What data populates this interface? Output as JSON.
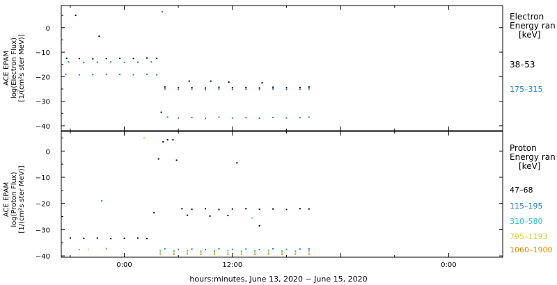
{
  "chart_data": [
    {
      "type": "scatter",
      "panel": "electron",
      "ylabel_lines": [
        "ACE EPAM",
        "log(Electron Flux)",
        "[1/(cm²s ster MeV)]"
      ],
      "legend_title": [
        "Electron",
        "Energy ran",
        "[keV]"
      ],
      "ylim": [
        -42,
        9
      ],
      "yticks": [
        0,
        -10,
        -20,
        -30,
        -40
      ],
      "ytick_labels": [
        "0",
        "−10",
        "−20",
        "−30",
        "−40"
      ],
      "xlim": [
        -7,
        42
      ],
      "series": [
        {
          "name": "38–53",
          "color": "#000000",
          "points": [
            [
              -5.4,
              5
            ],
            [
              -2.8,
              -3.5
            ],
            [
              -6.4,
              -12.5
            ],
            [
              -5,
              -12.6
            ],
            [
              -3.5,
              -12.7
            ],
            [
              -2,
              -12.6
            ],
            [
              -0.5,
              -12.5
            ],
            [
              1,
              -12.6
            ],
            [
              2.5,
              -12.4
            ],
            [
              3.6,
              -12.5
            ],
            [
              4.1,
              -34.5
            ],
            [
              4.5,
              -24.2
            ],
            [
              6,
              -24.5
            ],
            [
              7.5,
              -24.4
            ],
            [
              9,
              -24.6
            ],
            [
              10.5,
              -24.3
            ],
            [
              12,
              -24.5
            ],
            [
              13.5,
              -24.4
            ],
            [
              15,
              -24.6
            ],
            [
              16.5,
              -24.3
            ],
            [
              18,
              -24.5
            ],
            [
              19.5,
              -24.4
            ],
            [
              20.5,
              -24.2
            ],
            [
              7.2,
              -21.8
            ],
            [
              9.6,
              -21.8
            ],
            [
              11.6,
              -22.2
            ],
            [
              15.3,
              -22.5
            ]
          ]
        },
        {
          "name": "175–315",
          "color": "#1f7fd0",
          "points": [
            [
              4.2,
              6.5
            ],
            [
              -6.5,
              -19
            ],
            [
              -5,
              -19.2
            ],
            [
              -3.5,
              -19.1
            ],
            [
              -2,
              -19
            ],
            [
              -0.5,
              -19.1
            ],
            [
              1,
              -19.2
            ],
            [
              2.5,
              -19
            ],
            [
              3.6,
              -19.2
            ],
            [
              -6.2,
              -14
            ],
            [
              -4.5,
              -14.2
            ],
            [
              -3,
              -14.1
            ],
            [
              -1.5,
              -14
            ],
            [
              0,
              -14.2
            ],
            [
              1.5,
              -14.1
            ],
            [
              3,
              -14
            ],
            [
              4.5,
              -25
            ],
            [
              6,
              -25.2
            ],
            [
              7.5,
              -25.1
            ],
            [
              9,
              -25.3
            ],
            [
              10.5,
              -25
            ],
            [
              12,
              -25.2
            ],
            [
              13.5,
              -25.1
            ],
            [
              15,
              -25.3
            ],
            [
              16.5,
              -25
            ],
            [
              18,
              -25.2
            ],
            [
              19.5,
              -25.1
            ],
            [
              20.5,
              -25
            ],
            [
              4.8,
              -36.5
            ],
            [
              6,
              -36.8
            ],
            [
              7.5,
              -36.6
            ],
            [
              9,
              -37
            ],
            [
              10.5,
              -36.5
            ],
            [
              12,
              -36.8
            ],
            [
              13.5,
              -36.7
            ],
            [
              15,
              -36.9
            ],
            [
              16.5,
              -36.6
            ],
            [
              18,
              -36.8
            ],
            [
              19.5,
              -36.7
            ],
            [
              20.5,
              -36.5
            ]
          ]
        }
      ]
    },
    {
      "type": "scatter",
      "panel": "proton",
      "ylabel_lines": [
        "ACE EPAM",
        "log(Proton Flux)",
        "[1/(cm²s ster MeV)]"
      ],
      "legend_title": [
        "Proton",
        "Energy ran",
        "[keV]"
      ],
      "ylim": [
        -40.5,
        7.5
      ],
      "yticks": [
        0,
        -10,
        -20,
        -30,
        -40
      ],
      "ytick_labels": [
        "0",
        "−10",
        "−20",
        "−30",
        "−40"
      ],
      "xlim": [
        -7,
        42
      ],
      "series": [
        {
          "name": "47–68",
          "color": "#000000",
          "points": [
            [
              -6,
              -33.2
            ],
            [
              -4.5,
              -33.3
            ],
            [
              -3,
              -33.2
            ],
            [
              -1.5,
              -33.4
            ],
            [
              0,
              -33.3
            ],
            [
              1.5,
              -33.2
            ],
            [
              2.5,
              -33.4
            ],
            [
              3.3,
              -23.5
            ],
            [
              3.8,
              -3
            ],
            [
              4.3,
              3.5
            ],
            [
              4.8,
              4.3
            ],
            [
              5.4,
              4.3
            ],
            [
              5.8,
              -3.5
            ],
            [
              6.4,
              -22
            ],
            [
              7.5,
              -22.2
            ],
            [
              9,
              -22
            ],
            [
              10.5,
              -22.3
            ],
            [
              12,
              -22.1
            ],
            [
              13.5,
              -22
            ],
            [
              15,
              -22.2
            ],
            [
              16.5,
              -22.1
            ],
            [
              18,
              -22.3
            ],
            [
              19.5,
              -22
            ],
            [
              20.5,
              -22.1
            ],
            [
              7,
              -24.5
            ],
            [
              9.5,
              -24.8
            ],
            [
              11.5,
              -24.6
            ],
            [
              15,
              -28.5
            ],
            [
              12.5,
              -4.5
            ]
          ]
        },
        {
          "name": "115–195",
          "color": "#1f7fd0",
          "points": [
            [
              -2.5,
              -19
            ],
            [
              4.5,
              -37.3
            ],
            [
              6,
              -37.5
            ],
            [
              7.5,
              -37.4
            ],
            [
              9,
              -37.6
            ],
            [
              10.5,
              -37.3
            ],
            [
              12,
              -37.5
            ],
            [
              13.5,
              -37.4
            ],
            [
              15,
              -37.6
            ],
            [
              16.5,
              -37.3
            ],
            [
              18,
              -37.5
            ],
            [
              19.5,
              -37.4
            ],
            [
              20.5,
              -37.3
            ]
          ]
        },
        {
          "name": "310–580",
          "color": "#27c3c3",
          "points": [
            [
              4,
              -38
            ],
            [
              5.5,
              -38.1
            ],
            [
              7,
              -38
            ],
            [
              8.5,
              -38.2
            ],
            [
              10,
              -38.1
            ],
            [
              11.5,
              -38
            ],
            [
              13,
              -38.2
            ],
            [
              14.5,
              -38.1
            ],
            [
              16,
              -38
            ],
            [
              17.5,
              -38.2
            ],
            [
              19,
              -38.1
            ],
            [
              20.5,
              -38
            ],
            [
              14.2,
              -25.5
            ]
          ]
        },
        {
          "name": "795–1193",
          "color": "#d5cf1a",
          "points": [
            [
              2.2,
              5
            ],
            [
              -4,
              -37.5
            ],
            [
              4,
              -38.7
            ],
            [
              5.5,
              -38.8
            ],
            [
              7,
              -38.7
            ],
            [
              8.5,
              -38.8
            ],
            [
              10,
              -38.7
            ],
            [
              11.5,
              -38.8
            ],
            [
              13,
              -38.7
            ],
            [
              14.5,
              -38.8
            ],
            [
              16,
              -38.7
            ],
            [
              17.5,
              -38.8
            ],
            [
              19,
              -38.7
            ],
            [
              20.5,
              -38.7
            ]
          ]
        },
        {
          "name": "1060–1900",
          "color": "#e08a00",
          "points": [
            [
              -2,
              -37.2
            ],
            [
              -5,
              -37.6
            ],
            [
              4,
              -39.3
            ],
            [
              5.5,
              -39.4
            ],
            [
              7,
              -39.3
            ],
            [
              8.5,
              -39.4
            ],
            [
              10,
              -39.3
            ],
            [
              11.5,
              -39.4
            ],
            [
              13,
              -39.3
            ],
            [
              14.5,
              -39.4
            ],
            [
              16,
              -39.3
            ],
            [
              17.5,
              -39.4
            ],
            [
              19,
              -39.3
            ],
            [
              20.5,
              -39.3
            ]
          ]
        }
      ]
    }
  ],
  "xaxis": {
    "xlabel": "hours:minutes, June 13, 2020 − June 15, 2020",
    "ticks": [
      {
        "hours": 0,
        "label": "0:00"
      },
      {
        "hours": 12,
        "label": "12:00"
      },
      {
        "hours": 24,
        "label": ""
      },
      {
        "hours": 36,
        "label": "0:00"
      }
    ],
    "minor_step_hours": 6
  }
}
